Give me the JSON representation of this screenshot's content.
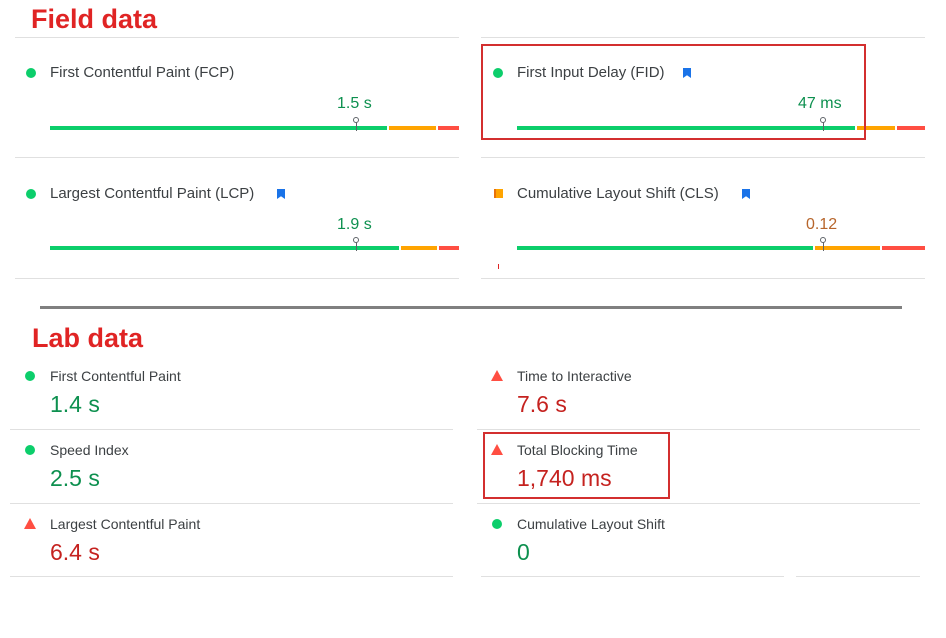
{
  "field": {
    "title": "Field data",
    "fcp": {
      "label": "First Contentful Paint (FCP)",
      "value": "1.5 s",
      "status": "good",
      "marker_pct": 0.75
    },
    "fid": {
      "label": "First Input Delay (FID)",
      "value": "47 ms",
      "status": "good",
      "marker_pct": 0.75
    },
    "lcp": {
      "label": "Largest Contentful Paint (LCP)",
      "value": "1.9 s",
      "status": "good",
      "marker_pct": 0.75
    },
    "cls": {
      "label": "Cumulative Layout Shift (CLS)",
      "value": "0.12",
      "status": "average",
      "marker_pct": 0.75
    }
  },
  "lab": {
    "title": "Lab data",
    "fcp": {
      "label": "First Contentful Paint",
      "value": "1.4 s",
      "status": "good"
    },
    "tti": {
      "label": "Time to Interactive",
      "value": "7.6 s",
      "status": "poor"
    },
    "si": {
      "label": "Speed Index",
      "value": "2.5 s",
      "status": "good"
    },
    "tbt": {
      "label": "Total Blocking Time",
      "value": "1,740 ms",
      "status": "poor"
    },
    "lcp": {
      "label": "Largest Contentful Paint",
      "value": "6.4 s",
      "status": "poor"
    },
    "cls": {
      "label": "Cumulative Layout Shift",
      "value": "0",
      "status": "good"
    }
  },
  "colors": {
    "good": "#0cce6b",
    "average": "#ffa400",
    "poor": "#ff4e42",
    "annotation": "#d32f2f",
    "bookmark": "#1a73e8"
  },
  "icons": {
    "good": "circle-good-icon",
    "average": "square-average-icon",
    "poor": "triangle-poor-icon",
    "field_data_origin": "bookmark-icon"
  }
}
